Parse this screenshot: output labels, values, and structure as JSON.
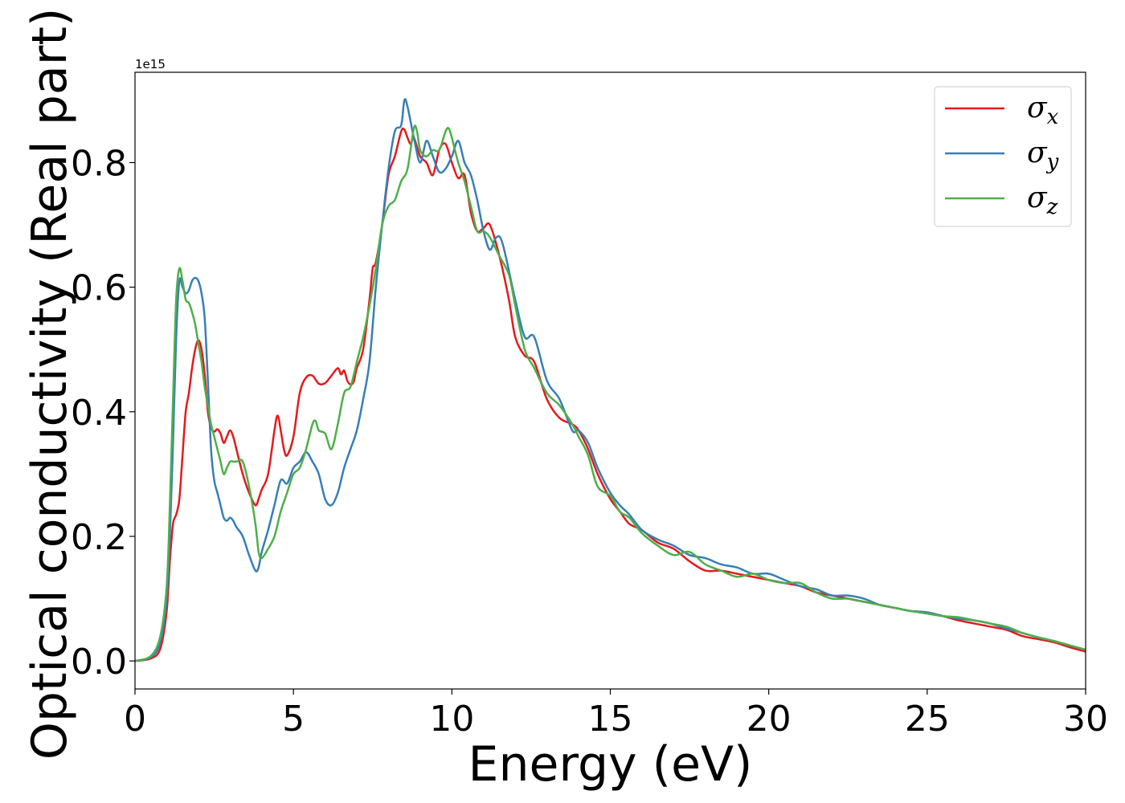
{
  "chart_data": {
    "type": "line",
    "xlabel": "Energy (eV)",
    "ylabel": "Optical conductivity (Real part)",
    "y_offset_text": "1e15",
    "xlim": [
      0,
      30
    ],
    "ylim": [
      -0.045,
      0.945
    ],
    "x_ticks": [
      0,
      5,
      10,
      15,
      20,
      25,
      30
    ],
    "y_ticks": [
      0.0,
      0.2,
      0.4,
      0.6,
      0.8
    ],
    "x_tick_labels": [
      "0",
      "5",
      "10",
      "15",
      "20",
      "25",
      "30"
    ],
    "y_tick_labels": [
      "0.0",
      "0.2",
      "0.4",
      "0.6",
      "0.8"
    ],
    "grid": false,
    "legend_position": "top-right",
    "series": [
      {
        "name": "σx",
        "base": "σ",
        "sub": "x",
        "color": "#e41a1c",
        "x": [
          0,
          0.5,
          0.8,
          1.0,
          1.1,
          1.2,
          1.3,
          1.4,
          1.5,
          1.6,
          1.7,
          1.8,
          1.9,
          2.0,
          2.1,
          2.2,
          2.3,
          2.4,
          2.5,
          2.6,
          2.7,
          2.8,
          2.9,
          3.0,
          3.1,
          3.2,
          3.4,
          3.6,
          3.8,
          3.9,
          4.0,
          4.2,
          4.4,
          4.5,
          4.6,
          4.7,
          4.8,
          5.0,
          5.2,
          5.4,
          5.6,
          5.8,
          6.0,
          6.2,
          6.4,
          6.5,
          6.6,
          6.7,
          6.8,
          6.9,
          7.0,
          7.2,
          7.4,
          7.5,
          7.6,
          7.8,
          8.0,
          8.2,
          8.4,
          8.5,
          8.6,
          8.7,
          8.8,
          9.0,
          9.2,
          9.4,
          9.6,
          9.8,
          10.0,
          10.2,
          10.4,
          10.6,
          10.8,
          11.0,
          11.2,
          11.5,
          11.8,
          12.0,
          12.3,
          12.6,
          13.0,
          13.4,
          13.8,
          14.0,
          14.3,
          14.6,
          15.0,
          15.3,
          15.6,
          16.0,
          16.5,
          17.0,
          17.5,
          18.0,
          18.5,
          19.0,
          19.5,
          20.0,
          20.5,
          21.0,
          21.5,
          22.0,
          22.5,
          23.0,
          23.5,
          24.0,
          24.5,
          25.0,
          25.5,
          26.0,
          26.5,
          27.0,
          27.5,
          28.0,
          28.5,
          29.0,
          29.5,
          30.0
        ],
        "values": [
          0.0,
          0.004,
          0.02,
          0.08,
          0.16,
          0.22,
          0.235,
          0.26,
          0.33,
          0.4,
          0.43,
          0.47,
          0.5,
          0.515,
          0.5,
          0.46,
          0.4,
          0.375,
          0.368,
          0.372,
          0.365,
          0.35,
          0.36,
          0.37,
          0.36,
          0.34,
          0.3,
          0.27,
          0.25,
          0.26,
          0.275,
          0.3,
          0.37,
          0.394,
          0.37,
          0.34,
          0.33,
          0.36,
          0.43,
          0.455,
          0.458,
          0.445,
          0.446,
          0.458,
          0.47,
          0.46,
          0.466,
          0.45,
          0.444,
          0.448,
          0.47,
          0.5,
          0.58,
          0.63,
          0.64,
          0.7,
          0.78,
          0.81,
          0.85,
          0.853,
          0.84,
          0.83,
          0.84,
          0.81,
          0.8,
          0.78,
          0.82,
          0.83,
          0.8,
          0.775,
          0.78,
          0.72,
          0.69,
          0.695,
          0.7,
          0.65,
          0.58,
          0.52,
          0.49,
          0.48,
          0.42,
          0.39,
          0.38,
          0.37,
          0.34,
          0.3,
          0.26,
          0.24,
          0.22,
          0.21,
          0.19,
          0.18,
          0.16,
          0.145,
          0.145,
          0.14,
          0.135,
          0.13,
          0.125,
          0.12,
          0.11,
          0.105,
          0.1,
          0.095,
          0.09,
          0.085,
          0.08,
          0.078,
          0.072,
          0.065,
          0.06,
          0.055,
          0.05,
          0.04,
          0.035,
          0.03,
          0.022,
          0.015
        ]
      },
      {
        "name": "σy",
        "base": "σ",
        "sub": "y",
        "color": "#377eb8",
        "x": [
          0,
          0.5,
          0.8,
          1.0,
          1.1,
          1.2,
          1.3,
          1.4,
          1.5,
          1.6,
          1.7,
          1.8,
          1.9,
          2.0,
          2.1,
          2.2,
          2.3,
          2.4,
          2.5,
          2.6,
          2.7,
          2.8,
          2.9,
          3.0,
          3.1,
          3.2,
          3.4,
          3.6,
          3.8,
          3.9,
          4.0,
          4.2,
          4.4,
          4.6,
          4.8,
          5.0,
          5.2,
          5.4,
          5.6,
          5.8,
          6.0,
          6.2,
          6.4,
          6.6,
          6.8,
          7.0,
          7.2,
          7.4,
          7.6,
          7.8,
          8.0,
          8.2,
          8.4,
          8.5,
          8.6,
          8.8,
          9.0,
          9.2,
          9.4,
          9.6,
          9.8,
          10.0,
          10.2,
          10.4,
          10.6,
          10.8,
          11.0,
          11.2,
          11.4,
          11.6,
          12.0,
          12.3,
          12.6,
          13.0,
          13.4,
          13.8,
          14.0,
          14.3,
          14.6,
          15.0,
          15.3,
          15.6,
          16.0,
          16.5,
          17.0,
          17.5,
          18.0,
          18.5,
          19.0,
          19.5,
          20.0,
          20.5,
          21.0,
          21.5,
          22.0,
          22.5,
          23.0,
          23.5,
          24.0,
          24.5,
          25.0,
          25.5,
          26.0,
          26.5,
          27.0,
          27.5,
          28.0,
          28.5,
          29.0,
          29.5,
          30.0
        ],
        "values": [
          0.0,
          0.006,
          0.03,
          0.1,
          0.2,
          0.35,
          0.52,
          0.61,
          0.6,
          0.59,
          0.595,
          0.61,
          0.615,
          0.61,
          0.59,
          0.55,
          0.45,
          0.34,
          0.29,
          0.27,
          0.25,
          0.23,
          0.225,
          0.23,
          0.225,
          0.215,
          0.2,
          0.17,
          0.145,
          0.15,
          0.175,
          0.21,
          0.25,
          0.29,
          0.285,
          0.31,
          0.32,
          0.335,
          0.32,
          0.3,
          0.26,
          0.25,
          0.27,
          0.31,
          0.34,
          0.37,
          0.42,
          0.48,
          0.6,
          0.7,
          0.79,
          0.85,
          0.86,
          0.9,
          0.89,
          0.84,
          0.8,
          0.835,
          0.81,
          0.785,
          0.79,
          0.81,
          0.835,
          0.8,
          0.78,
          0.74,
          0.69,
          0.66,
          0.68,
          0.67,
          0.58,
          0.52,
          0.52,
          0.45,
          0.42,
          0.37,
          0.37,
          0.35,
          0.31,
          0.27,
          0.25,
          0.235,
          0.21,
          0.195,
          0.185,
          0.17,
          0.165,
          0.155,
          0.15,
          0.14,
          0.14,
          0.13,
          0.12,
          0.115,
          0.105,
          0.105,
          0.1,
          0.09,
          0.085,
          0.08,
          0.078,
          0.072,
          0.068,
          0.065,
          0.06,
          0.052,
          0.045,
          0.038,
          0.032,
          0.025,
          0.018
        ]
      },
      {
        "name": "σz",
        "base": "σ",
        "sub": "z",
        "color": "#4daf4a",
        "x": [
          0,
          0.5,
          0.8,
          1.0,
          1.1,
          1.2,
          1.3,
          1.4,
          1.5,
          1.6,
          1.7,
          1.8,
          1.9,
          2.0,
          2.1,
          2.2,
          2.3,
          2.4,
          2.5,
          2.6,
          2.7,
          2.8,
          2.9,
          3.0,
          3.1,
          3.2,
          3.4,
          3.6,
          3.8,
          3.9,
          4.0,
          4.2,
          4.4,
          4.6,
          4.8,
          5.0,
          5.2,
          5.4,
          5.6,
          5.7,
          5.8,
          6.0,
          6.2,
          6.4,
          6.6,
          6.8,
          7.0,
          7.2,
          7.4,
          7.6,
          7.8,
          8.0,
          8.2,
          8.4,
          8.6,
          8.8,
          8.9,
          9.0,
          9.2,
          9.4,
          9.6,
          9.8,
          9.9,
          10.0,
          10.2,
          10.4,
          10.6,
          10.8,
          11.0,
          11.2,
          11.5,
          11.8,
          12.0,
          12.3,
          12.6,
          13.0,
          13.4,
          13.8,
          14.0,
          14.3,
          14.6,
          15.0,
          15.3,
          15.6,
          16.0,
          16.5,
          17.0,
          17.5,
          18.0,
          18.5,
          19.0,
          19.5,
          20.0,
          20.5,
          21.0,
          21.5,
          22.0,
          22.5,
          23.0,
          23.5,
          24.0,
          24.5,
          25.0,
          25.5,
          26.0,
          26.5,
          27.0,
          27.5,
          28.0,
          28.5,
          29.0,
          29.5,
          30.0
        ],
        "values": [
          0.0,
          0.008,
          0.04,
          0.12,
          0.25,
          0.42,
          0.58,
          0.63,
          0.61,
          0.58,
          0.575,
          0.56,
          0.54,
          0.51,
          0.48,
          0.44,
          0.41,
          0.38,
          0.36,
          0.34,
          0.32,
          0.3,
          0.31,
          0.32,
          0.32,
          0.32,
          0.32,
          0.28,
          0.22,
          0.175,
          0.165,
          0.18,
          0.2,
          0.24,
          0.27,
          0.3,
          0.31,
          0.34,
          0.38,
          0.385,
          0.37,
          0.365,
          0.34,
          0.38,
          0.43,
          0.44,
          0.48,
          0.52,
          0.57,
          0.63,
          0.7,
          0.73,
          0.74,
          0.77,
          0.79,
          0.855,
          0.85,
          0.82,
          0.81,
          0.82,
          0.82,
          0.85,
          0.855,
          0.84,
          0.8,
          0.77,
          0.73,
          0.69,
          0.69,
          0.68,
          0.65,
          0.62,
          0.57,
          0.5,
          0.47,
          0.43,
          0.41,
          0.38,
          0.36,
          0.33,
          0.28,
          0.265,
          0.24,
          0.23,
          0.205,
          0.185,
          0.17,
          0.175,
          0.155,
          0.145,
          0.135,
          0.14,
          0.13,
          0.125,
          0.125,
          0.11,
          0.1,
          0.1,
          0.095,
          0.09,
          0.085,
          0.08,
          0.076,
          0.072,
          0.07,
          0.065,
          0.06,
          0.055,
          0.045,
          0.038,
          0.032,
          0.025,
          0.018
        ]
      }
    ]
  }
}
